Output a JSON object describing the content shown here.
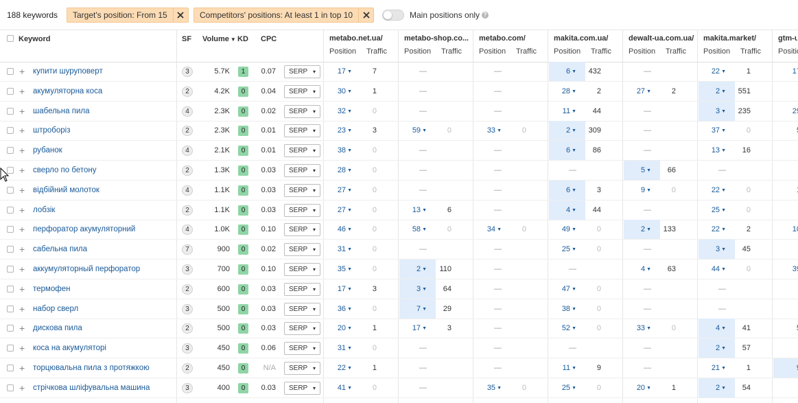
{
  "top_bar": {
    "keyword_count": "188 keywords",
    "filters": [
      {
        "label": "Target's position: From 15"
      },
      {
        "label": "Competitors' positions: At least 1 in top 10"
      }
    ],
    "main_positions_toggle": {
      "label": "Main positions only",
      "on": false
    }
  },
  "columns": {
    "keyword": "Keyword",
    "sf": "SF",
    "volume": "Volume",
    "kd": "KD",
    "cpc": "CPC",
    "position": "Position",
    "traffic": "Traffic"
  },
  "domains": [
    "metabo.net.ua/",
    "metabo-shop.co...",
    "metabo.com/",
    "makita.com.ua/",
    "dewalt-ua.com.ua/",
    "makita.market/",
    "gtm-u"
  ],
  "kd_color": "#8fd5a6",
  "kd_color_1": "#8fd5a6",
  "highlight_color": "#e1edfb",
  "link_color": "#1a5a99",
  "serp_label": "SERP",
  "rows": [
    {
      "keyword": "купити шуруповерт",
      "sf": "3",
      "volume": "5.7K",
      "kd": "1",
      "cpc": "0.07",
      "d": [
        [
          "17",
          "7"
        ],
        [
          "—",
          ""
        ],
        [
          "—",
          ""
        ],
        [
          "6",
          "432"
        ],
        [
          "—",
          ""
        ],
        [
          "22",
          "1"
        ],
        [
          "17",
          ""
        ]
      ],
      "hl": [
        3
      ]
    },
    {
      "keyword": "акумуляторна коса",
      "sf": "2",
      "volume": "4.2K",
      "kd": "0",
      "cpc": "0.04",
      "d": [
        [
          "30",
          "1"
        ],
        [
          "—",
          ""
        ],
        [
          "—",
          ""
        ],
        [
          "28",
          "2"
        ],
        [
          "27",
          "2"
        ],
        [
          "2",
          "551"
        ],
        [
          "",
          ""
        ]
      ],
      "hl": [
        5
      ]
    },
    {
      "keyword": "шабельна пила",
      "sf": "4",
      "volume": "2.3K",
      "kd": "0",
      "cpc": "0.02",
      "d": [
        [
          "32",
          "0"
        ],
        [
          "—",
          ""
        ],
        [
          "—",
          ""
        ],
        [
          "11",
          "44"
        ],
        [
          "—",
          ""
        ],
        [
          "3",
          "235"
        ],
        [
          "29",
          ""
        ]
      ],
      "hl": [
        5
      ]
    },
    {
      "keyword": "штроборіз",
      "sf": "2",
      "volume": "2.3K",
      "kd": "0",
      "cpc": "0.01",
      "d": [
        [
          "23",
          "3"
        ],
        [
          "59",
          "0"
        ],
        [
          "33",
          "0"
        ],
        [
          "2",
          "309"
        ],
        [
          "—",
          ""
        ],
        [
          "37",
          "0"
        ],
        [
          "5",
          ""
        ]
      ],
      "hl": [
        3
      ]
    },
    {
      "keyword": "рубанок",
      "sf": "4",
      "volume": "2.1K",
      "kd": "0",
      "cpc": "0.01",
      "d": [
        [
          "38",
          "0"
        ],
        [
          "—",
          ""
        ],
        [
          "—",
          ""
        ],
        [
          "6",
          "86"
        ],
        [
          "—",
          ""
        ],
        [
          "13",
          "16"
        ],
        [
          "",
          ""
        ]
      ],
      "hl": [
        3
      ]
    },
    {
      "keyword": "сверло по бетону",
      "sf": "2",
      "volume": "1.3K",
      "kd": "0",
      "cpc": "0.03",
      "d": [
        [
          "28",
          "0"
        ],
        [
          "—",
          ""
        ],
        [
          "—",
          ""
        ],
        [
          "—",
          ""
        ],
        [
          "5",
          "66"
        ],
        [
          "—",
          ""
        ],
        [
          "",
          ""
        ]
      ],
      "hl": [
        4
      ]
    },
    {
      "keyword": "відбійний молоток",
      "sf": "4",
      "volume": "1.1K",
      "kd": "0",
      "cpc": "0.03",
      "d": [
        [
          "27",
          "0"
        ],
        [
          "—",
          ""
        ],
        [
          "—",
          ""
        ],
        [
          "6",
          "3"
        ],
        [
          "9",
          "0"
        ],
        [
          "22",
          "0"
        ],
        [
          "1",
          ""
        ]
      ],
      "hl": [
        3
      ]
    },
    {
      "keyword": "лобзік",
      "sf": "2",
      "volume": "1.1K",
      "kd": "0",
      "cpc": "0.03",
      "d": [
        [
          "27",
          "0"
        ],
        [
          "13",
          "6"
        ],
        [
          "—",
          ""
        ],
        [
          "4",
          "44"
        ],
        [
          "—",
          ""
        ],
        [
          "25",
          "0"
        ],
        [
          "",
          ""
        ]
      ],
      "hl": [
        3
      ]
    },
    {
      "keyword": "перфоратор акумуляторний",
      "sf": "4",
      "volume": "1.0K",
      "kd": "0",
      "cpc": "0.10",
      "d": [
        [
          "46",
          "0"
        ],
        [
          "58",
          "0"
        ],
        [
          "34",
          "0"
        ],
        [
          "49",
          "0"
        ],
        [
          "2",
          "133"
        ],
        [
          "22",
          "2"
        ],
        [
          "10",
          ""
        ]
      ],
      "hl": [
        4
      ]
    },
    {
      "keyword": "сабельна пила",
      "sf": "7",
      "volume": "900",
      "kd": "0",
      "cpc": "0.02",
      "d": [
        [
          "31",
          "0"
        ],
        [
          "—",
          ""
        ],
        [
          "—",
          ""
        ],
        [
          "25",
          "0"
        ],
        [
          "—",
          ""
        ],
        [
          "3",
          "45"
        ],
        [
          "",
          ""
        ]
      ],
      "hl": [
        5
      ]
    },
    {
      "keyword": "аккумуляторный перфоратор",
      "sf": "3",
      "volume": "700",
      "kd": "0",
      "cpc": "0.10",
      "d": [
        [
          "35",
          "0"
        ],
        [
          "2",
          "110"
        ],
        [
          "—",
          ""
        ],
        [
          "—",
          ""
        ],
        [
          "4",
          "63"
        ],
        [
          "44",
          "0"
        ],
        [
          "39",
          ""
        ]
      ],
      "hl": [
        1
      ]
    },
    {
      "keyword": "термофен",
      "sf": "2",
      "volume": "600",
      "kd": "0",
      "cpc": "0.03",
      "d": [
        [
          "17",
          "3"
        ],
        [
          "3",
          "64"
        ],
        [
          "—",
          ""
        ],
        [
          "47",
          "0"
        ],
        [
          "—",
          ""
        ],
        [
          "—",
          ""
        ],
        [
          "",
          ""
        ]
      ],
      "hl": [
        1
      ]
    },
    {
      "keyword": "набор сверл",
      "sf": "3",
      "volume": "500",
      "kd": "0",
      "cpc": "0.03",
      "d": [
        [
          "36",
          "0"
        ],
        [
          "7",
          "29"
        ],
        [
          "—",
          ""
        ],
        [
          "38",
          "0"
        ],
        [
          "—",
          ""
        ],
        [
          "—",
          ""
        ],
        [
          "",
          ""
        ]
      ],
      "hl": [
        1
      ]
    },
    {
      "keyword": "дискова пила",
      "sf": "2",
      "volume": "500",
      "kd": "0",
      "cpc": "0.03",
      "d": [
        [
          "20",
          "1"
        ],
        [
          "17",
          "3"
        ],
        [
          "—",
          ""
        ],
        [
          "52",
          "0"
        ],
        [
          "33",
          "0"
        ],
        [
          "4",
          "41"
        ],
        [
          "5",
          ""
        ]
      ],
      "hl": [
        5
      ]
    },
    {
      "keyword": "коса на акумуляторі",
      "sf": "3",
      "volume": "450",
      "kd": "0",
      "cpc": "0.06",
      "d": [
        [
          "31",
          "0"
        ],
        [
          "—",
          ""
        ],
        [
          "—",
          ""
        ],
        [
          "—",
          ""
        ],
        [
          "—",
          ""
        ],
        [
          "2",
          "57"
        ],
        [
          "",
          ""
        ]
      ],
      "hl": [
        5
      ]
    },
    {
      "keyword": "торцювальна пила з протяжкою",
      "sf": "2",
      "volume": "450",
      "kd": "0",
      "cpc": "N/A",
      "d": [
        [
          "22",
          "1"
        ],
        [
          "—",
          ""
        ],
        [
          "—",
          ""
        ],
        [
          "11",
          "9"
        ],
        [
          "—",
          ""
        ],
        [
          "21",
          "1"
        ],
        [
          "9",
          ""
        ]
      ],
      "hl": [
        6
      ]
    },
    {
      "keyword": "стрічкова шліфувальна машина",
      "sf": "3",
      "volume": "400",
      "kd": "0",
      "cpc": "0.03",
      "d": [
        [
          "41",
          "0"
        ],
        [
          "—",
          ""
        ],
        [
          "35",
          "0"
        ],
        [
          "25",
          "0"
        ],
        [
          "20",
          "1"
        ],
        [
          "2",
          "54"
        ],
        [
          "",
          ""
        ]
      ],
      "hl": [
        5
      ]
    }
  ]
}
